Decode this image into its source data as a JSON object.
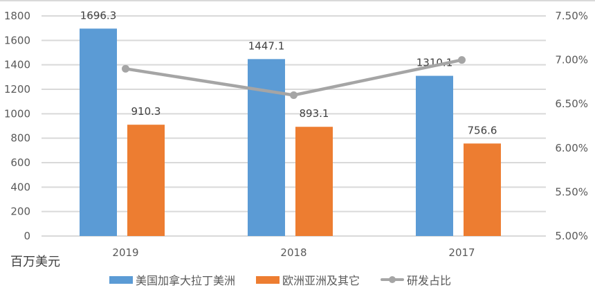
{
  "chart_data": {
    "type": "bar+line",
    "title": "",
    "categories": [
      "2019",
      "2018",
      "2017"
    ],
    "series": [
      {
        "name": "美国加拿大拉丁美洲",
        "type": "bar",
        "axis": "left",
        "color": "#5b9bd5",
        "values": [
          1696.3,
          1447.1,
          1310.1
        ],
        "labels": [
          "1696.3",
          "1447.1",
          "1310.1"
        ]
      },
      {
        "name": "欧洲亚洲及其它",
        "type": "bar",
        "axis": "left",
        "color": "#ed7d31",
        "values": [
          910.3,
          893.1,
          756.6
        ],
        "labels": [
          "910.3",
          "893.1",
          "756.6"
        ]
      },
      {
        "name": "研发占比",
        "type": "line",
        "axis": "right",
        "color": "#a5a5a5",
        "values": [
          0.069,
          0.066,
          0.07
        ]
      }
    ],
    "left_axis": {
      "label": "百万美元",
      "ticks": [
        "0",
        "200",
        "400",
        "600",
        "800",
        "1000",
        "1200",
        "1400",
        "1600",
        "1800"
      ],
      "ylim": [
        0,
        1800
      ]
    },
    "right_axis": {
      "ticks": [
        "5.00%",
        "5.50%",
        "6.00%",
        "6.50%",
        "7.00%",
        "7.50%"
      ],
      "ylim": [
        0.05,
        0.075
      ]
    },
    "grid": true,
    "legend_position": "bottom"
  },
  "unit_label": "百万美元",
  "legend": {
    "items": [
      {
        "label": "美国加拿大拉丁美洲",
        "color": "#5b9bd5"
      },
      {
        "label": "欧洲亚洲及其它",
        "color": "#ed7d31"
      },
      {
        "label": "研发占比",
        "color": "#a5a5a5"
      }
    ]
  }
}
